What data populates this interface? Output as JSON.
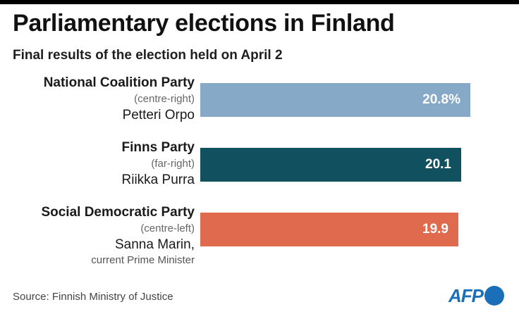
{
  "title": "Parliamentary elections in Finland",
  "subtitle": "Final results of the election held on April 2",
  "source": "Source: Finnish Ministry of Justice",
  "logo": "AFP",
  "chart_data": {
    "type": "bar",
    "orientation": "horizontal",
    "title": "Parliamentary elections in Finland",
    "subtitle": "Final results of the election held on April 2",
    "unit": "%",
    "categories": [
      "National Coalition Party",
      "Finns Party",
      "Social Democratic Party"
    ],
    "values": [
      20.8,
      20.1,
      19.9
    ],
    "value_labels": [
      "20.8%",
      "20.1",
      "19.9"
    ],
    "leans": [
      "(centre-right)",
      "(far-right)",
      "(centre-left)"
    ],
    "leaders": [
      "Petteri Orpo",
      "Riikka Purra",
      "Sanna Marin,"
    ],
    "notes": [
      "",
      "",
      "current Prime Minister"
    ],
    "colors": [
      "#85a9c6",
      "#11505f",
      "#e06a4e"
    ],
    "xlim": [
      0,
      20.8
    ],
    "grid": false,
    "legend": "none"
  }
}
